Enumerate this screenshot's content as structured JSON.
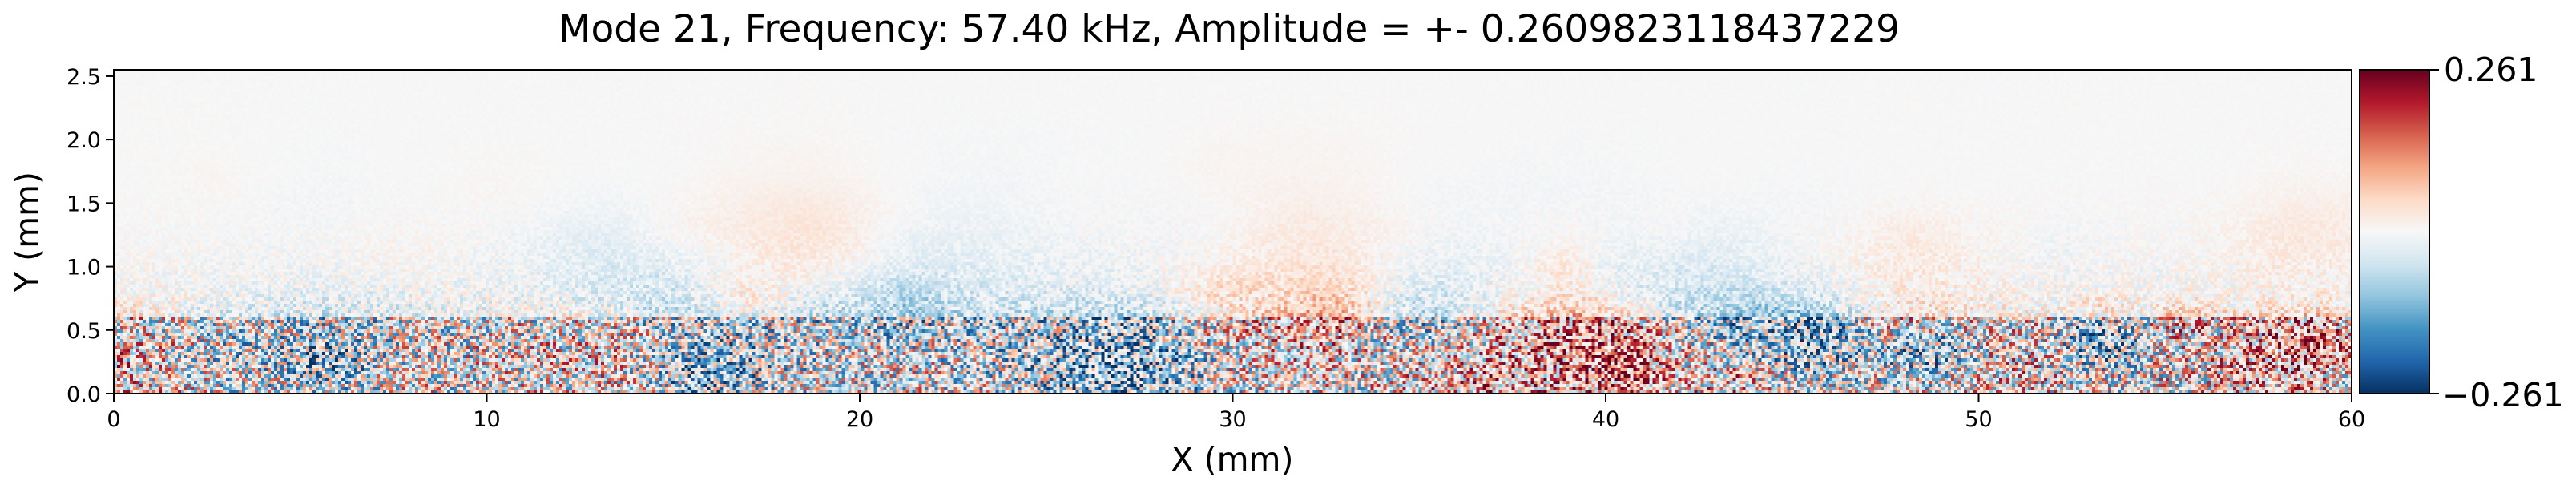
{
  "chart_data": {
    "type": "heatmap",
    "title": "Mode 21, Frequency: 57.40 kHz, Amplitude = +- 0.2609823118437229",
    "xlabel": "X (mm)",
    "ylabel": "Y (mm)",
    "xlim": [
      0,
      60
    ],
    "ylim": [
      0,
      2.55
    ],
    "xticks": [
      0,
      10,
      20,
      30,
      40,
      50,
      60
    ],
    "xtick_labels": [
      "0",
      "10",
      "20",
      "30",
      "40",
      "50",
      "60"
    ],
    "yticks": [
      0.0,
      0.5,
      1.0,
      1.5,
      2.0,
      2.5
    ],
    "ytick_labels": [
      "0.0",
      "0.5",
      "1.0",
      "1.5",
      "2.0",
      "2.5"
    ],
    "grid": false,
    "colormap": "RdBu_r",
    "value_range": [
      -0.261,
      0.261
    ],
    "colorbar": {
      "position": "right",
      "max_label": "0.261",
      "min_label": "−0.261",
      "colors": [
        "#053061",
        "#2166ac",
        "#4393c3",
        "#92c5de",
        "#d1e5f0",
        "#f7f7f7",
        "#fddbc7",
        "#f4a582",
        "#d6604d",
        "#b2182b",
        "#67001f"
      ]
    },
    "field_description": {
      "structure": "noisy field; strong small-scale alternating red/blue fluctuations concentrated near Y < 0.6 mm, weak faint fluctuations above Y > 1.2 mm",
      "max_abs_value": 0.2609823118437229
    }
  }
}
